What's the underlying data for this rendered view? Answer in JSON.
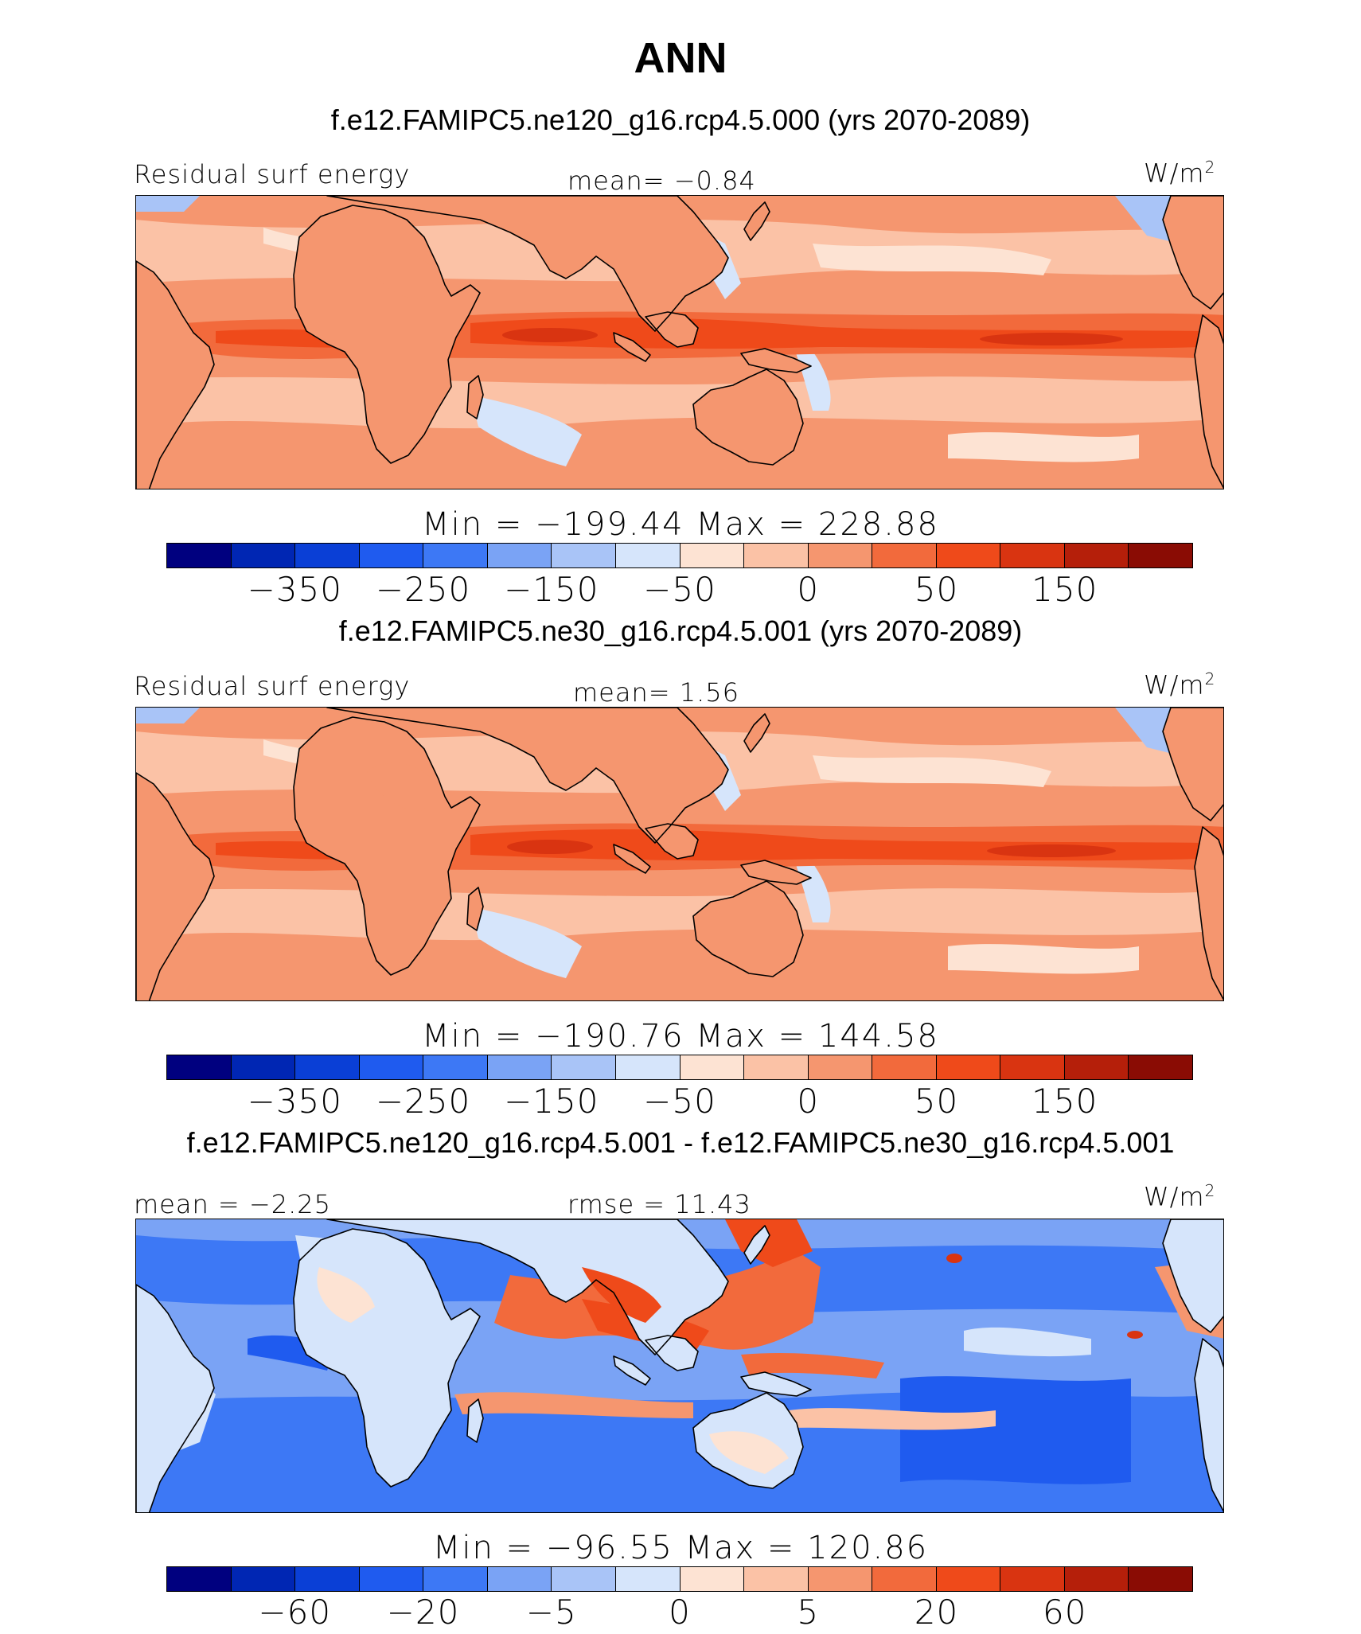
{
  "title": "ANN",
  "palette": [
    "#00007f",
    "#0026b3",
    "#0a3fd6",
    "#1f5bef",
    "#3d78f5",
    "#7aa3f5",
    "#a9c4f7",
    "#d6e5fb",
    "#fde3d3",
    "#fbc2a6",
    "#f5966f",
    "#f26a3c",
    "#ef4a1a",
    "#d93411",
    "#b51f0a",
    "#8a0c04"
  ],
  "panels": [
    {
      "case": "f.e12.FAMIPC5.ne120_g16.rcp4.5.000 (yrs 2070-2089)",
      "left_label": "Residual surf energy",
      "center_label": "mean=   −0.84",
      "units": "W/m",
      "units_sup": "2",
      "minmax": "Min = −199.44 Max = 228.88",
      "ticks": [
        "−350",
        "−250",
        "−150",
        "−50",
        "0",
        "50",
        "150"
      ],
      "map": {
        "field": "full",
        "tropic_intensity": 1.0
      }
    },
    {
      "case": "f.e12.FAMIPC5.ne30_g16.rcp4.5.001 (yrs 2070-2089)",
      "left_label": "Residual surf energy",
      "center_label": "mean=   1.56",
      "units": "W/m",
      "units_sup": "2",
      "minmax": "Min = −190.76 Max = 144.58",
      "ticks": [
        "−350",
        "−250",
        "−150",
        "−50",
        "0",
        "50",
        "150"
      ],
      "map": {
        "field": "full",
        "tropic_intensity": 0.9
      }
    },
    {
      "case": "f.e12.FAMIPC5.ne120_g16.rcp4.5.001 - f.e12.FAMIPC5.ne30_g16.rcp4.5.001",
      "left_label": "mean =  −2.25",
      "center_label": "rmse =  11.43",
      "units": "W/m",
      "units_sup": "2",
      "minmax": "Min = −96.55 Max = 120.86",
      "ticks": [
        "−60",
        "−20",
        "−5",
        "0",
        "5",
        "20",
        "60"
      ],
      "map": {
        "field": "diff"
      }
    }
  ]
}
